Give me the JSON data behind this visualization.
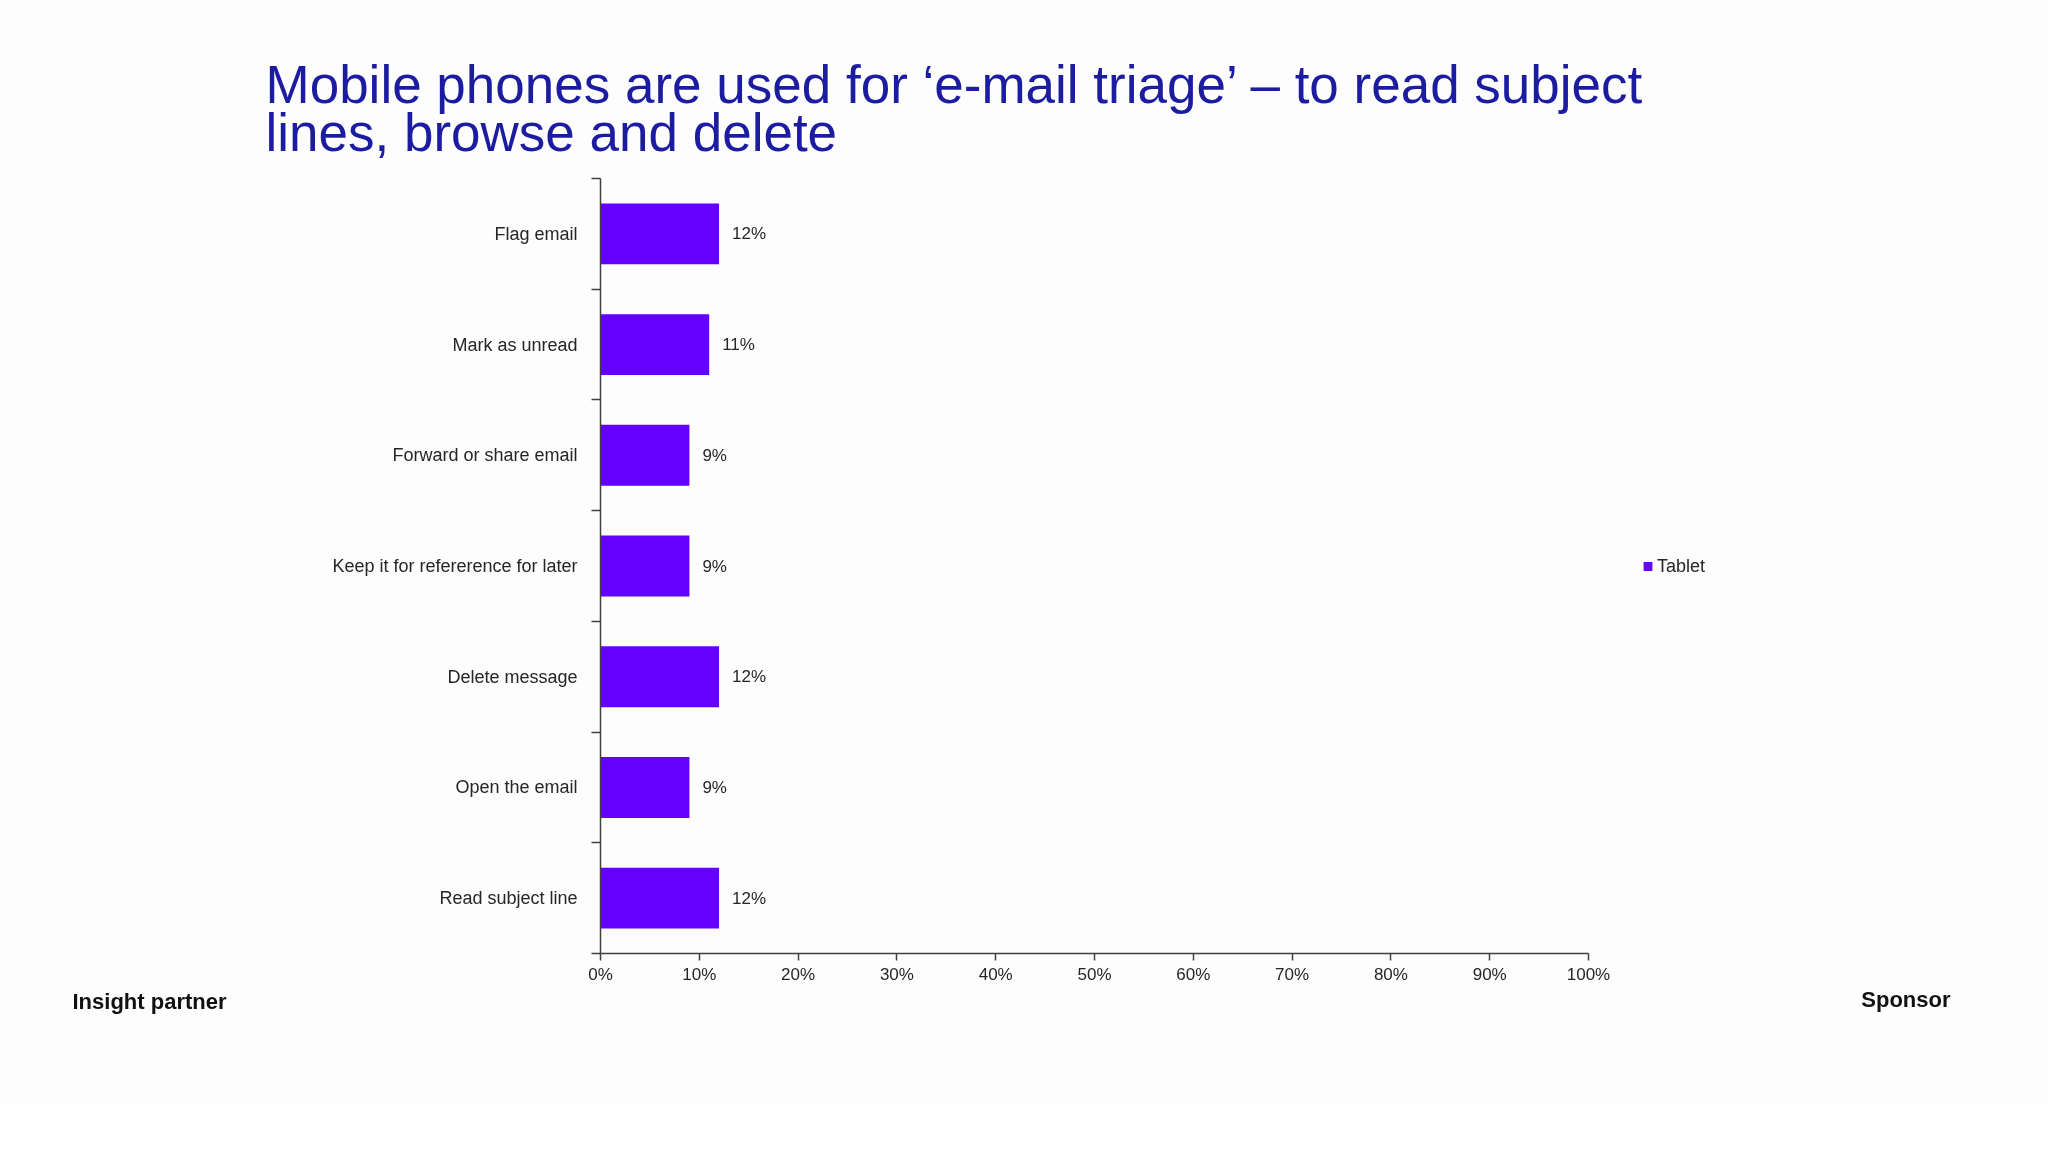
{
  "chart_data": {
    "type": "bar",
    "orientation": "horizontal",
    "title": "Mobile phones are used for ‘e-mail triage’ – to read subject lines, browse and delete",
    "categories": [
      "Flag email",
      "Mark as unread",
      "Forward or share email",
      "Keep it for refererence for later",
      "Delete message",
      "Open the email",
      "Read subject line"
    ],
    "series": [
      {
        "name": "Tablet",
        "color": "#6400ff",
        "values": [
          12,
          11,
          9,
          9,
          12,
          9,
          12
        ],
        "value_labels": [
          "12%",
          "11%",
          "9%",
          "9%",
          "12%",
          "9%",
          "12%"
        ]
      }
    ],
    "xlim": [
      0,
      100
    ],
    "xticks": [
      {
        "value": 0,
        "label": "0%"
      },
      {
        "value": 10,
        "label": "10%"
      },
      {
        "value": 20,
        "label": "20%"
      },
      {
        "value": 30,
        "label": "30%"
      },
      {
        "value": 40,
        "label": "40%"
      },
      {
        "value": 50,
        "label": "50%"
      },
      {
        "value": 60,
        "label": "60%"
      },
      {
        "value": 70,
        "label": "70%"
      },
      {
        "value": 80,
        "label": "80%"
      },
      {
        "value": 90,
        "label": "90%"
      },
      {
        "value": 100,
        "label": "100%"
      }
    ],
    "grid": false,
    "legend": "right",
    "annotations": [
      "Insight partner",
      "Sponsor"
    ]
  }
}
